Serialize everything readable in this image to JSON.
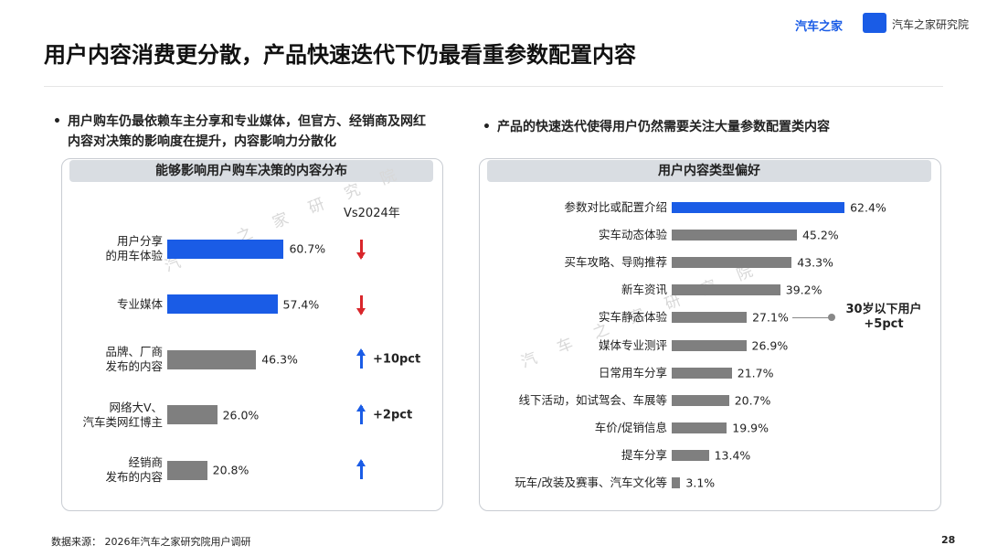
{
  "header": {
    "title": "用户内容消费更分散，产品快速迭代下仍最看重参数配置内容",
    "logo_left": "汽车之家",
    "logo_right": "汽车之家研究院"
  },
  "bullets": [
    "用户购车仍最依赖车主分享和专业媒体，但官方、经销商及网红内容对决策的影响度在提升，内容影响力分散化",
    "产品的快速迭代使得用户仍然需要关注大量参数配置类内容"
  ],
  "watermark": "汽 车 之 家 研 究 院",
  "footer": {
    "source": "数据来源：  2026年汽车之家研究院用户调研",
    "page": "28"
  },
  "chart_data": [
    {
      "type": "bar",
      "orientation": "horizontal",
      "title": "能够影响用户购车决策的内容分布",
      "categories": [
        "用户分享\n的用车体验",
        "专业媒体",
        "品牌、厂商\n发布的内容",
        "网络大V、\n汽车类网红博主",
        "经销商\n发布的内容"
      ],
      "values": [
        60.7,
        57.4,
        46.3,
        26.0,
        20.8
      ],
      "value_labels": [
        "60.7%",
        "57.4%",
        "46.3%",
        "26.0%",
        "20.8%"
      ],
      "colors": [
        "#1a5ce6",
        "#1a5ce6",
        "#7f7f7f",
        "#7f7f7f",
        "#7f7f7f"
      ],
      "change_header": "Vs2024年",
      "change_direction": [
        "down",
        "down",
        "up",
        "up",
        "up"
      ],
      "change_labels": [
        null,
        null,
        "+10pct",
        "+2pct",
        null
      ]
    },
    {
      "type": "bar",
      "orientation": "horizontal",
      "title": "用户内容类型偏好",
      "categories": [
        "参数对比或配置介绍",
        "实车动态体验",
        "买车攻略、导购推荐",
        "新车资讯",
        "实车静态体验",
        "媒体专业测评",
        "日常用车分享",
        "线下活动，如试驾会、车展等",
        "车价/促销信息",
        "提车分享",
        "玩车/改装及赛事、汽车文化等"
      ],
      "values": [
        62.4,
        45.2,
        43.3,
        39.2,
        27.1,
        26.9,
        21.7,
        20.7,
        19.9,
        13.4,
        3.1
      ],
      "value_labels": [
        "62.4%",
        "45.2%",
        "43.3%",
        "39.2%",
        "27.1%",
        "26.9%",
        "21.7%",
        "20.7%",
        "19.9%",
        "13.4%",
        "3.1%"
      ],
      "colors": [
        "#1a5ce6",
        "#7f7f7f",
        "#7f7f7f",
        "#7f7f7f",
        "#7f7f7f",
        "#7f7f7f",
        "#7f7f7f",
        "#7f7f7f",
        "#7f7f7f",
        "#7f7f7f",
        "#7f7f7f"
      ],
      "annotation": {
        "text": "30岁以下用户\n+5pct",
        "index": 4
      }
    }
  ]
}
